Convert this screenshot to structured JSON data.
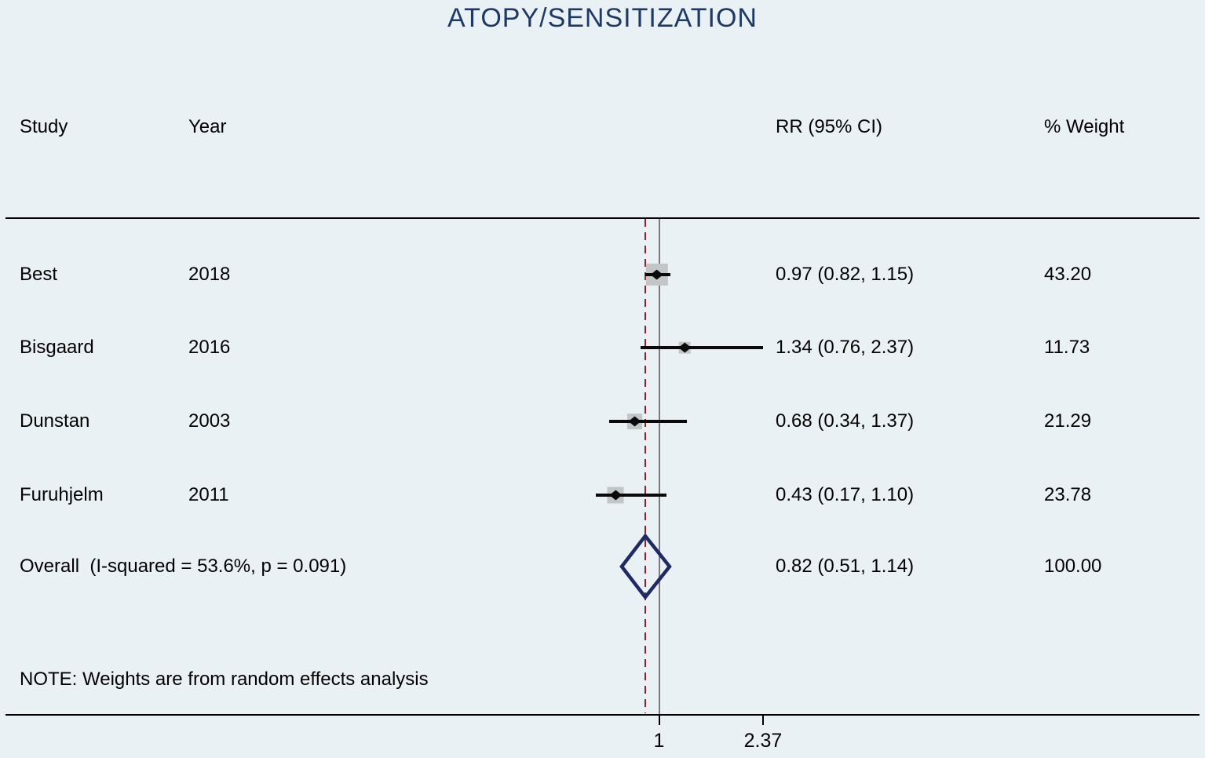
{
  "title": "ATOPY/SENSITIZATION",
  "columns": {
    "study": "Study",
    "year": "Year",
    "rr": "RR (95% CI)",
    "weight": "% Weight"
  },
  "note": "NOTE: Weights are from random effects analysis",
  "colors": {
    "background": "#e9f1f5",
    "title": "#1e3a64",
    "dashed_overall_line": "#8d2326",
    "null_line": "#7a7a7a",
    "weight_box": "#c2c6c7",
    "overall_diamond": "#1f2a64",
    "text": "#000000"
  },
  "chart_data": {
    "type": "forest",
    "title": "ATOPY/SENSITIZATION",
    "x_axis": {
      "scale": "linear",
      "ticks": [
        {
          "value": 1,
          "label": "1"
        },
        {
          "value": 2.37,
          "label": "2.37"
        }
      ]
    },
    "null_line_value": 1,
    "overall_reference_value": 0.82,
    "studies": [
      {
        "study": "Best",
        "year": "2018",
        "rr": 0.97,
        "ci_low": 0.82,
        "ci_high": 1.15,
        "rr_label": "0.97 (0.82, 1.15)",
        "weight": 43.2,
        "weight_label": "43.20"
      },
      {
        "study": "Bisgaard",
        "year": "2016",
        "rr": 1.34,
        "ci_low": 0.76,
        "ci_high": 2.37,
        "rr_label": "1.34 (0.76, 2.37)",
        "weight": 11.73,
        "weight_label": "11.73"
      },
      {
        "study": "Dunstan",
        "year": "2003",
        "rr": 0.68,
        "ci_low": 0.34,
        "ci_high": 1.37,
        "rr_label": "0.68 (0.34, 1.37)",
        "weight": 21.29,
        "weight_label": "21.29"
      },
      {
        "study": "Furuhjelm",
        "year": "2011",
        "rr": 0.43,
        "ci_low": 0.17,
        "ci_high": 1.1,
        "rr_label": "0.43 (0.17, 1.10)",
        "weight": 23.78,
        "weight_label": "23.78"
      }
    ],
    "overall": {
      "label": "Overall  (I-squared = 53.6%, p = 0.091)",
      "rr": 0.82,
      "ci_low": 0.51,
      "ci_high": 1.14,
      "rr_label": "0.82 (0.51, 1.14)",
      "weight_label": "100.00"
    }
  }
}
